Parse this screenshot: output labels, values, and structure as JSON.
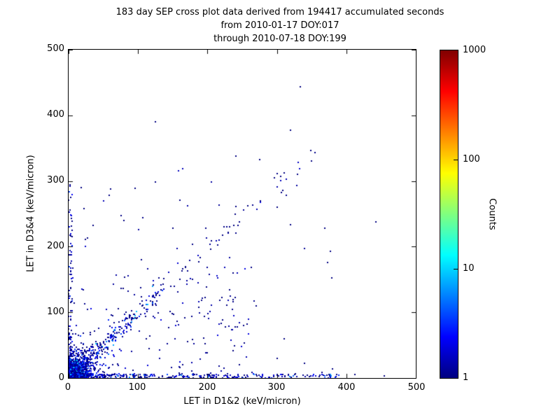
{
  "chart_data": {
    "type": "scatter",
    "title_lines": [
      "183 day SEP cross plot data derived from 194417 accumulated seconds",
      "from 2010-01-17 DOY:017",
      "through 2010-07-18 DOY:199"
    ],
    "xlabel": "LET in D1&2 (keV/micron)",
    "ylabel": "LET in D3&4 (keV/micron)",
    "xlim": [
      0,
      500
    ],
    "ylim": [
      0,
      500
    ],
    "xticks": [
      0,
      100,
      200,
      300,
      400,
      500
    ],
    "yticks": [
      0,
      100,
      200,
      300,
      400,
      500
    ],
    "grid": false,
    "legend": "colorbar-right",
    "colorbar": {
      "label": "Counts",
      "scale": "log",
      "min": 1,
      "max": 1000,
      "ticks": [
        1,
        10,
        100,
        1000
      ],
      "tick_labels": [
        "1",
        "10",
        "100",
        "1000"
      ],
      "colormap": "jet",
      "colormap_stops": [
        "#000080",
        "#0000ff",
        "#00ffff",
        "#ffff00",
        "#ff0000",
        "#800000"
      ]
    },
    "seed": 42,
    "marker_px": 2,
    "clusters": [
      {
        "name": "origin-core",
        "type": "gaussian",
        "cx": 3,
        "cy": 3,
        "sx": 3,
        "sy": 3,
        "n": 800,
        "counts": [
          8,
          700
        ]
      },
      {
        "name": "origin-halo",
        "type": "gaussian",
        "cx": 5,
        "cy": 5,
        "sx": 10,
        "sy": 10,
        "n": 900,
        "counts": [
          1,
          15
        ]
      },
      {
        "name": "origin-outer",
        "type": "gaussian",
        "cx": 10,
        "cy": 10,
        "sx": 22,
        "sy": 22,
        "n": 350,
        "counts": [
          1,
          4
        ]
      },
      {
        "name": "x-axis-band",
        "type": "band-x",
        "x0": 0,
        "x1": 390,
        "y0": 0,
        "y1": 6,
        "pow": 3,
        "n": 420,
        "counts": [
          1,
          6
        ]
      },
      {
        "name": "y-axis-band",
        "type": "band-y",
        "x0": 0,
        "x1": 5,
        "y0": 0,
        "y1": 295,
        "pow": 2.2,
        "n": 130,
        "counts": [
          1,
          4
        ]
      },
      {
        "name": "main-diagonal",
        "type": "diag",
        "from": 8,
        "to": 130,
        "spread": 6,
        "pow": 1.8,
        "n": 300,
        "counts": [
          1,
          10
        ]
      },
      {
        "name": "upper-diagonal",
        "type": "diag",
        "from": 130,
        "to": 345,
        "spread": 12,
        "pow": 1,
        "n": 45,
        "counts": [
          1,
          2
        ]
      },
      {
        "name": "lower-left-scatter",
        "type": "uniform",
        "x0": 0,
        "x1": 270,
        "y0": 0,
        "y1": 170,
        "n": 170,
        "counts": [
          1,
          2
        ]
      },
      {
        "name": "mid-scatter",
        "type": "uniform",
        "x0": 20,
        "x1": 380,
        "y0": 150,
        "y1": 340,
        "n": 28,
        "counts": [
          1,
          2
        ]
      }
    ],
    "outlier_points": [
      [
        125,
        390
      ],
      [
        334,
        443
      ],
      [
        320,
        377
      ],
      [
        350,
        330
      ],
      [
        310,
        312
      ],
      [
        296,
        305
      ],
      [
        275,
        333
      ],
      [
        443,
        238
      ],
      [
        96,
        289
      ],
      [
        60,
        288
      ],
      [
        18,
        290
      ],
      [
        240,
        250
      ],
      [
        238,
        232
      ],
      [
        246,
        238
      ],
      [
        230,
        222
      ],
      [
        258,
        262
      ],
      [
        205,
        196
      ],
      [
        190,
        183
      ],
      [
        160,
        150
      ],
      [
        300,
        260
      ],
      [
        330,
        310
      ],
      [
        365,
        8
      ],
      [
        380,
        14
      ],
      [
        340,
        22
      ],
      [
        300,
        30
      ],
      [
        412,
        5
      ],
      [
        455,
        3
      ],
      [
        270,
        110
      ],
      [
        310,
        60
      ],
      [
        218,
        118
      ],
      [
        150,
        228
      ],
      [
        105,
        180
      ],
      [
        80,
        240
      ],
      [
        35,
        232
      ],
      [
        22,
        258
      ],
      [
        241,
        338
      ]
    ]
  }
}
